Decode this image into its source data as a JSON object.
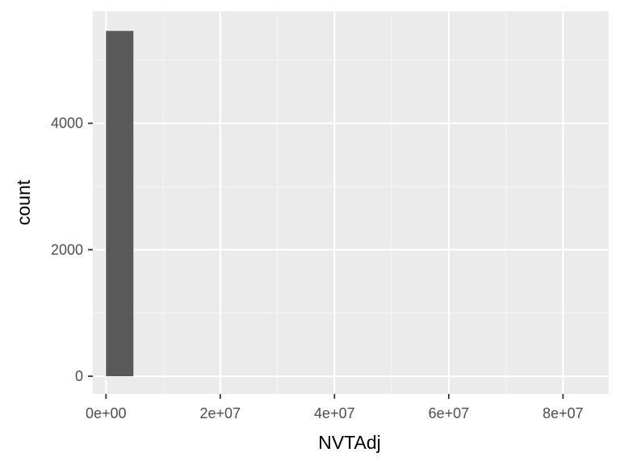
{
  "chart_data": {
    "type": "bar",
    "subtype": "histogram",
    "title": "",
    "xlabel": "NVTAdj",
    "ylabel": "count",
    "xlim": [
      -2300000,
      88000000
    ],
    "ylim": [
      -280,
      5770
    ],
    "x_ticks": [
      {
        "value": 0,
        "label": "0e+00"
      },
      {
        "value": 20000000,
        "label": "2e+07"
      },
      {
        "value": 40000000,
        "label": "4e+07"
      },
      {
        "value": 60000000,
        "label": "6e+07"
      },
      {
        "value": 80000000,
        "label": "8e+07"
      }
    ],
    "y_ticks": [
      {
        "value": 0,
        "label": "0"
      },
      {
        "value": 2000,
        "label": "2000"
      },
      {
        "value": 4000,
        "label": "4000"
      }
    ],
    "bins": [
      {
        "x_start": 0,
        "x_end": 4800000,
        "count": 5460
      }
    ],
    "grid": true,
    "legend": "none",
    "colors": {
      "panel_background": "#ebebeb",
      "grid_major": "#ffffff",
      "grid_minor": "#f5f5f5",
      "bar_fill": "#595959",
      "tick_mark": "#333333"
    }
  }
}
